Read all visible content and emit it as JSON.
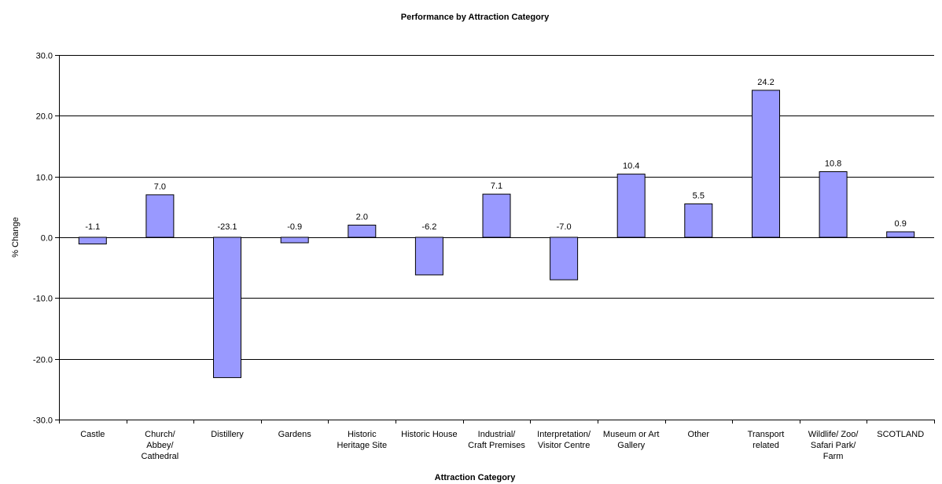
{
  "chart_data": {
    "type": "bar",
    "title": "Performance by Attraction Category",
    "xlabel": "Attraction Category",
    "ylabel": "% Change",
    "ylim": [
      -30,
      30
    ],
    "yticks": [
      30,
      20,
      10,
      0,
      -10,
      -20,
      -30
    ],
    "ytick_labels": [
      "30.0",
      "20.0",
      "10.0",
      "0.0",
      "-10.0",
      "-20.0",
      "-30.0"
    ],
    "grid": true,
    "bar_color": "#9999ff",
    "categories": [
      [
        "Castle"
      ],
      [
        "Church/",
        "Abbey/",
        "Cathedral"
      ],
      [
        "Distillery"
      ],
      [
        "Gardens"
      ],
      [
        "Historic",
        "Heritage Site"
      ],
      [
        "Historic House"
      ],
      [
        "Industrial/",
        "Craft Premises"
      ],
      [
        "Interpretation/",
        "Visitor Centre"
      ],
      [
        "Museum or Art",
        "Gallery"
      ],
      [
        "Other"
      ],
      [
        "Transport",
        "related"
      ],
      [
        "Wildlife/ Zoo/",
        "Safari Park/",
        "Farm"
      ],
      [
        "SCOTLAND"
      ]
    ],
    "values": [
      -1.1,
      7.0,
      -23.1,
      -0.9,
      2.0,
      -6.2,
      7.1,
      -7.0,
      10.4,
      5.5,
      24.2,
      10.8,
      0.9
    ],
    "data_labels": [
      "-1.1",
      "7.0",
      "-23.1",
      "-0.9",
      "2.0",
      "-6.2",
      "7.1",
      "-7.0",
      "10.4",
      "5.5",
      "24.2",
      "10.8",
      "0.9"
    ]
  }
}
